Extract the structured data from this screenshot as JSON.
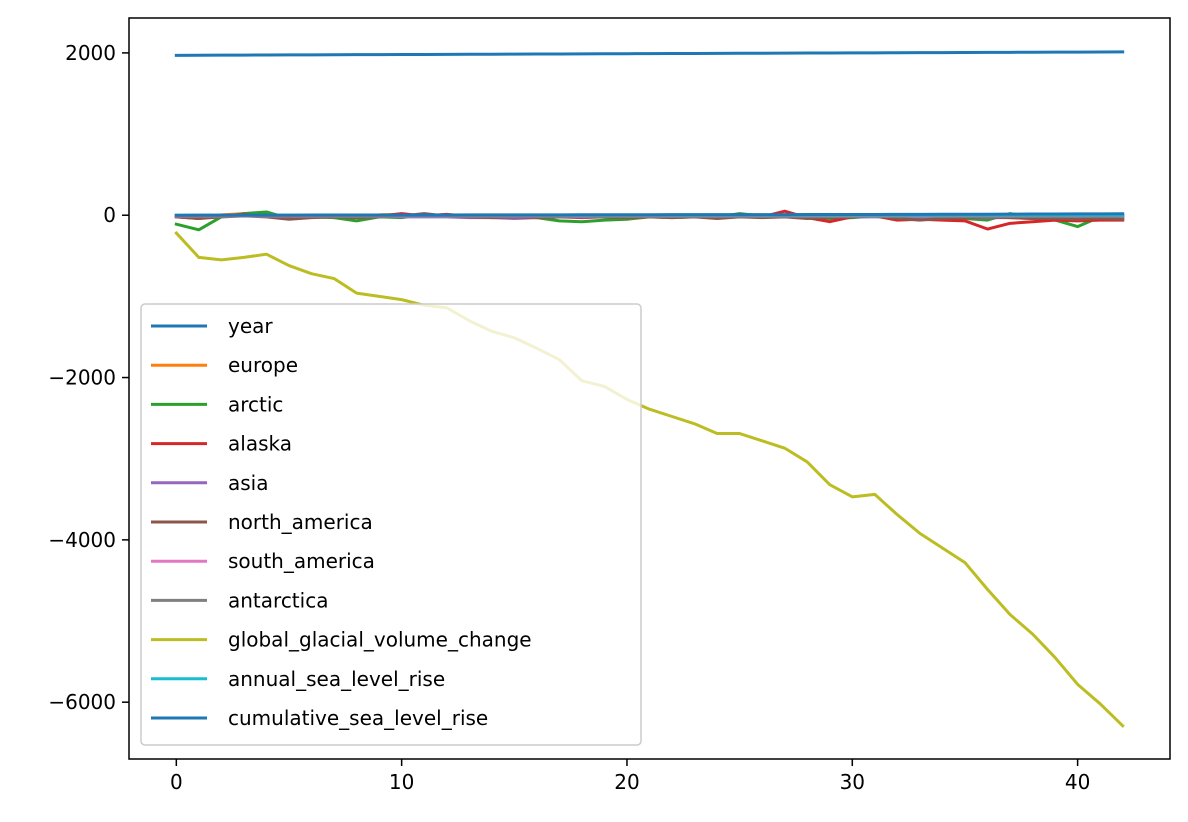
{
  "chart_data": {
    "type": "line",
    "title": "",
    "xlabel": "",
    "ylabel": "",
    "xlim": [
      -2.1,
      44.1
    ],
    "ylim": [
      -6700,
      2430
    ],
    "x_ticks": [
      0,
      10,
      20,
      30,
      40
    ],
    "y_ticks": [
      -6000,
      -4000,
      -2000,
      0,
      2000
    ],
    "x_tick_labels": [
      "0",
      "10",
      "20",
      "30",
      "40"
    ],
    "y_tick_labels": [
      "−6000",
      "−4000",
      "−2000",
      "0",
      "2000"
    ],
    "grid": false,
    "legend_position": "lower left",
    "x": [
      0,
      1,
      2,
      3,
      4,
      5,
      6,
      7,
      8,
      9,
      10,
      11,
      12,
      13,
      14,
      15,
      16,
      17,
      18,
      19,
      20,
      21,
      22,
      23,
      24,
      25,
      26,
      27,
      28,
      29,
      30,
      31,
      32,
      33,
      34,
      35,
      36,
      37,
      38,
      39,
      40,
      41,
      42
    ],
    "series": [
      {
        "name": "year",
        "color": "#1f77b4",
        "values": [
          1970,
          1971,
          1972,
          1973,
          1974,
          1975,
          1976,
          1977,
          1978,
          1979,
          1980,
          1981,
          1982,
          1983,
          1984,
          1985,
          1986,
          1987,
          1988,
          1989,
          1990,
          1991,
          1992,
          1993,
          1994,
          1995,
          1996,
          1997,
          1998,
          1999,
          2000,
          2001,
          2002,
          2003,
          2004,
          2005,
          2006,
          2007,
          2008,
          2009,
          2010,
          2011,
          2012
        ]
      },
      {
        "name": "europe",
        "color": "#ff7f0e",
        "values": [
          -10,
          -25,
          5,
          20,
          5,
          -20,
          -10,
          -5,
          -15,
          5,
          10,
          -5,
          10,
          -10,
          -15,
          -20,
          -10,
          -5,
          -20,
          -5,
          -10,
          -5,
          -15,
          -10,
          -20,
          5,
          -10,
          -5,
          -15,
          -10,
          -5,
          5,
          -20,
          -10,
          -15,
          -10,
          -20,
          5,
          -5,
          -10,
          -15,
          -10,
          -20
        ]
      },
      {
        "name": "arctic",
        "color": "#2ca02c",
        "values": [
          -110,
          -180,
          -20,
          20,
          40,
          -40,
          -20,
          -30,
          -70,
          -20,
          -30,
          10,
          -10,
          -20,
          -20,
          -20,
          -30,
          -70,
          -80,
          -60,
          -50,
          -20,
          -30,
          -20,
          -20,
          20,
          -10,
          -20,
          -20,
          -40,
          -30,
          -10,
          -30,
          -50,
          -40,
          -40,
          -60,
          20,
          -20,
          -60,
          -140,
          -20,
          -30
        ]
      },
      {
        "name": "alaska",
        "color": "#d62728",
        "values": [
          -20,
          -40,
          -10,
          10,
          -10,
          -30,
          -20,
          -10,
          -20,
          -10,
          20,
          -10,
          10,
          -20,
          -10,
          -30,
          -20,
          -20,
          -30,
          -20,
          -30,
          -20,
          -10,
          -20,
          -10,
          10,
          -20,
          50,
          -30,
          -80,
          -20,
          -10,
          -60,
          -50,
          -60,
          -70,
          -170,
          -100,
          -80,
          -60,
          -70,
          -60,
          -60
        ]
      },
      {
        "name": "asia",
        "color": "#9467bd",
        "values": [
          -10,
          -10,
          -5,
          0,
          -5,
          -10,
          -10,
          -10,
          -10,
          -10,
          -20,
          -20,
          -20,
          -30,
          -30,
          -40,
          -30,
          -20,
          -20,
          -20,
          -20,
          -20,
          -20,
          -20,
          -20,
          -20,
          -20,
          -20,
          -20,
          -20,
          -20,
          -20,
          -20,
          -20,
          -30,
          -30,
          -30,
          -30,
          -40,
          -40,
          -40,
          -40,
          -40
        ]
      },
      {
        "name": "north_america",
        "color": "#8c564b",
        "values": [
          -20,
          -40,
          -20,
          -10,
          -20,
          -50,
          -30,
          -20,
          -30,
          -20,
          -10,
          20,
          -10,
          -20,
          -30,
          -20,
          -30,
          -20,
          -10,
          -20,
          -30,
          -20,
          -30,
          -20,
          -40,
          -20,
          -30,
          -20,
          -40,
          -30,
          -20,
          -10,
          -40,
          -60,
          -40,
          -30,
          -20,
          -30,
          -40,
          -40,
          -50,
          -40,
          -50
        ]
      },
      {
        "name": "south_america",
        "color": "#e377c2",
        "values": [
          -10,
          -10,
          -10,
          -10,
          -10,
          -10,
          -10,
          -10,
          -10,
          -10,
          -10,
          -10,
          -10,
          -10,
          -10,
          -10,
          -10,
          -10,
          -10,
          -10,
          -10,
          -10,
          -10,
          -10,
          -10,
          -10,
          -10,
          -10,
          -10,
          -10,
          -10,
          -10,
          -10,
          -10,
          -10,
          -10,
          -10,
          -10,
          -10,
          -10,
          -10,
          -10,
          -10
        ]
      },
      {
        "name": "antarctica",
        "color": "#7f7f7f",
        "values": [
          -5,
          -5,
          -5,
          -5,
          -5,
          -5,
          -5,
          -5,
          -5,
          -5,
          -5,
          -5,
          -5,
          -5,
          -5,
          -5,
          -5,
          -5,
          -5,
          -5,
          -5,
          -5,
          -5,
          -5,
          -5,
          -5,
          -5,
          -5,
          -5,
          -5,
          -5,
          -5,
          -5,
          -5,
          -5,
          -5,
          -5,
          -5,
          -5,
          -5,
          -5,
          -5,
          -5
        ]
      },
      {
        "name": "global_glacial_volume_change",
        "color": "#bcbd22",
        "values": [
          -220,
          -520,
          -550,
          -520,
          -480,
          -620,
          -720,
          -780,
          -960,
          -1000,
          -1040,
          -1110,
          -1140,
          -1300,
          -1430,
          -1510,
          -1640,
          -1780,
          -2040,
          -2110,
          -2270,
          -2390,
          -2480,
          -2570,
          -2690,
          -2690,
          -2780,
          -2870,
          -3040,
          -3320,
          -3470,
          -3440,
          -3690,
          -3920,
          -4100,
          -4280,
          -4610,
          -4920,
          -5160,
          -5450,
          -5780,
          -6020,
          -6290
        ]
      },
      {
        "name": "annual_sea_level_rise",
        "color": "#17becf",
        "values": [
          0,
          0,
          0,
          0,
          0,
          0,
          0,
          0,
          0,
          0,
          0,
          0,
          0,
          0,
          0,
          0,
          0,
          0,
          0,
          0,
          0,
          0,
          0,
          0,
          0,
          0,
          0,
          0,
          0,
          0,
          0,
          0,
          0,
          0,
          0,
          0,
          0,
          0,
          0,
          0,
          0,
          0,
          0
        ]
      },
      {
        "name": "cumulative_sea_level_rise",
        "color": "#1f77b4",
        "values": [
          0,
          1.4,
          1.5,
          1.4,
          1.3,
          1.7,
          2,
          2.2,
          2.7,
          2.8,
          2.9,
          3.1,
          3.2,
          3.6,
          4,
          4.2,
          4.5,
          4.9,
          5.6,
          5.8,
          6.3,
          6.6,
          6.9,
          7.1,
          7.4,
          7.4,
          7.7,
          7.9,
          8.4,
          9.2,
          9.6,
          9.5,
          10.2,
          10.8,
          11.3,
          11.8,
          12.7,
          13.6,
          14.3,
          15.1,
          16,
          16.6,
          17.4
        ]
      }
    ]
  }
}
